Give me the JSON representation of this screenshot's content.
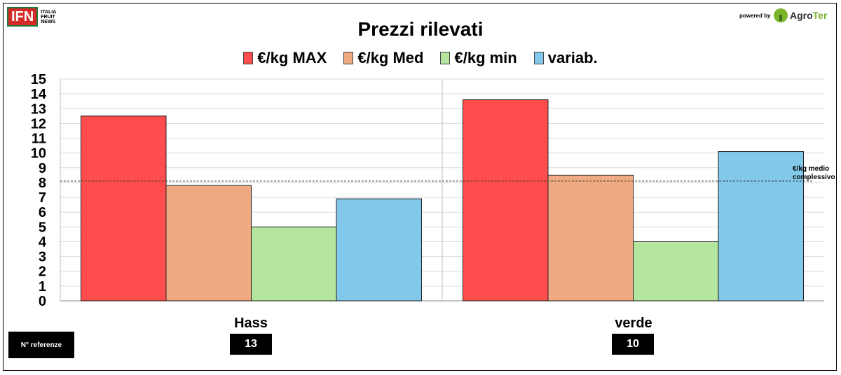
{
  "header": {
    "logo_letters": "IFN",
    "logo_words": [
      "ITALIA",
      "FRUIT",
      "NEWS"
    ],
    "powered_by": "powered by",
    "partner_name_a": "Agro",
    "partner_name_b": "Ter"
  },
  "colors": {
    "max": "#ff4d4d",
    "med": "#f0aa82",
    "min": "#b4e6a0",
    "variab": "#82c8ea",
    "text": "#000000"
  },
  "chart_data": {
    "type": "bar",
    "title": "Prezzi rilevati",
    "categories": [
      "Hass",
      "verde"
    ],
    "series": [
      {
        "name": "€/kg MAX",
        "values": [
          12.5,
          13.6
        ]
      },
      {
        "name": "€/kg Med",
        "values": [
          7.8,
          8.5
        ]
      },
      {
        "name": "€/kg  min",
        "values": [
          5.0,
          4.0
        ]
      },
      {
        "name": "variab.",
        "values": [
          6.9,
          10.1
        ]
      }
    ],
    "ylim": [
      0,
      15
    ],
    "yticks": [
      0,
      1,
      2,
      3,
      4,
      5,
      6,
      7,
      8,
      9,
      10,
      11,
      12,
      13,
      14,
      15
    ],
    "grid": true,
    "legend_position": "top",
    "reference_line": {
      "value": 8.1,
      "label_line1": "€/kg medio",
      "label_line2": "complessivo"
    }
  },
  "footer": {
    "n_ref_label": "N° referenze",
    "counts": [
      "13",
      "10"
    ]
  }
}
